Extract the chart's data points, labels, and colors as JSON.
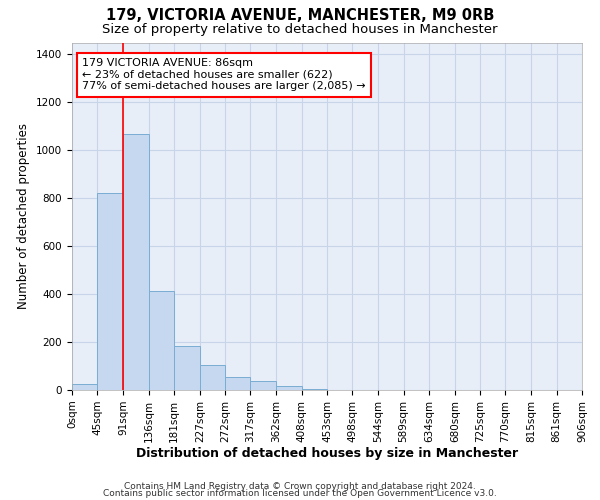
{
  "title1": "179, VICTORIA AVENUE, MANCHESTER, M9 0RB",
  "title2": "Size of property relative to detached houses in Manchester",
  "xlabel": "Distribution of detached houses by size in Manchester",
  "ylabel": "Number of detached properties",
  "bar_color": "#c5d8f0",
  "bar_edge_color": "#7aadd4",
  "grid_color": "#c8d4e8",
  "bg_color": "#e8eef8",
  "annotation_text": "179 VICTORIA AVENUE: 86sqm\n← 23% of detached houses are smaller (622)\n77% of semi-detached houses are larger (2,085) →",
  "redline_x": 91,
  "bar_values": [
    25,
    820,
    1070,
    415,
    183,
    103,
    55,
    38,
    15,
    5,
    2,
    0,
    0,
    0,
    0,
    0,
    0,
    0,
    0,
    0
  ],
  "bin_edges": [
    0,
    45,
    91,
    136,
    181,
    227,
    272,
    317,
    362,
    408,
    453,
    498,
    544,
    589,
    634,
    680,
    725,
    770,
    815,
    861,
    906
  ],
  "xlim": [
    0,
    906
  ],
  "ylim": [
    0,
    1450
  ],
  "yticks": [
    0,
    200,
    400,
    600,
    800,
    1000,
    1200,
    1400
  ],
  "footer1": "Contains HM Land Registry data © Crown copyright and database right 2024.",
  "footer2": "Contains public sector information licensed under the Open Government Licence v3.0.",
  "title1_fontsize": 10.5,
  "title2_fontsize": 9.5,
  "xlabel_fontsize": 9,
  "ylabel_fontsize": 8.5,
  "tick_fontsize": 7.5,
  "footer_fontsize": 6.5,
  "annotation_fontsize": 8
}
